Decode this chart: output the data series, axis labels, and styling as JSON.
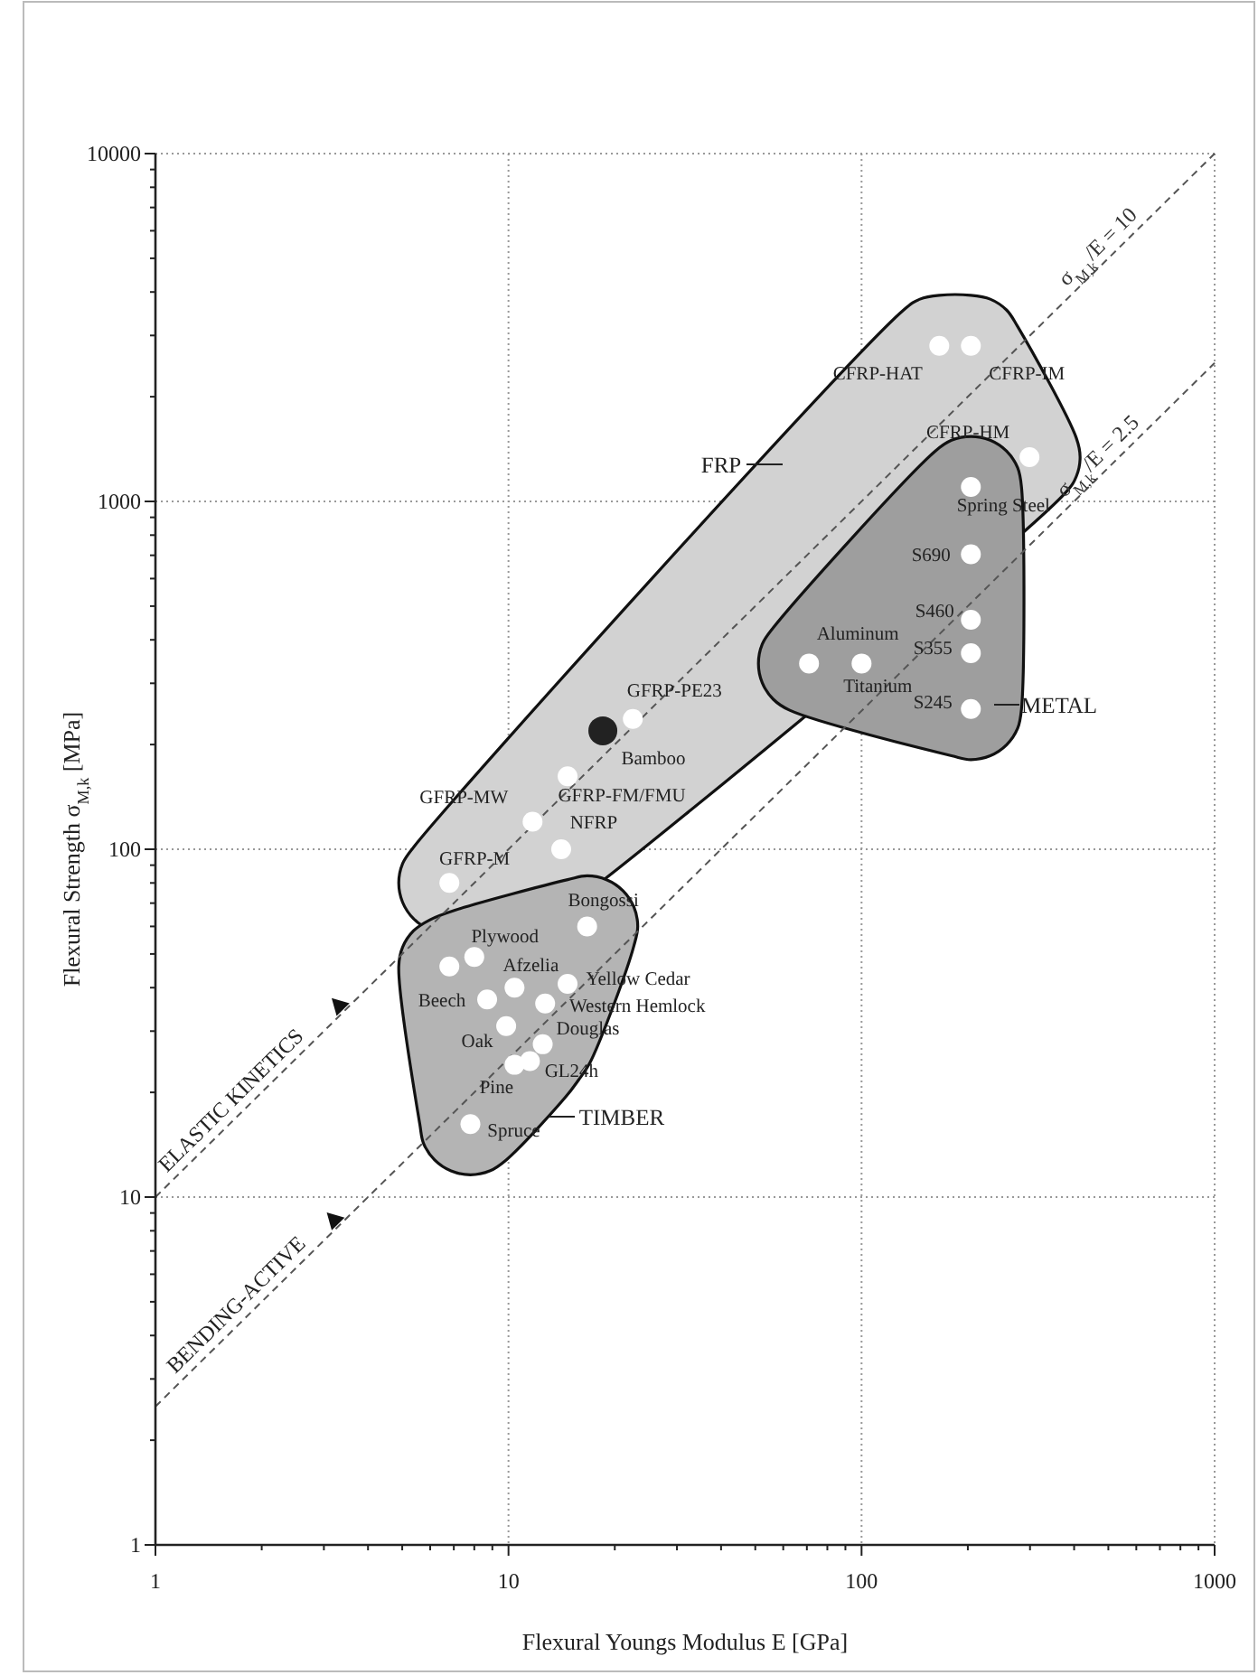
{
  "chart_data": {
    "type": "scatter",
    "xlabel": "Flexural Youngs Modulus E [GPa]",
    "ylabel": "Flexural Strength σ$_{M,k}$ [MPa]",
    "log": "xy",
    "grid": true,
    "marker": "circle",
    "xlim": [
      1,
      1000
    ],
    "xticks": [
      1,
      10,
      100,
      1000
    ],
    "ylim": [
      1,
      10000
    ],
    "yticks": [
      1,
      10,
      100,
      1000,
      10000
    ],
    "series": [
      {
        "color": "#ffffff",
        "x": [
          166,
          204,
          299,
          22.5,
          14.7,
          11.7,
          14.1,
          6.8
        ],
        "values": [
          2800,
          2800,
          1340,
          237,
          162,
          120,
          100,
          80
        ],
        "value_labels": [
          "CFRP-HAT",
          "CFRP-IM",
          "CFRP-HM",
          "GFRP-PE23",
          "GFRP-FM/FMU",
          "GFRP-MW",
          "NFRP",
          "GFRP-M"
        ]
      },
      {
        "color": "#ffffff",
        "x": [
          204,
          204,
          204,
          204,
          204,
          71,
          100
        ],
        "values": [
          1100,
          705,
          457,
          366,
          253,
          342,
          342
        ],
        "value_labels": [
          "Spring Steel",
          "S690",
          "S460",
          "S355",
          "S245",
          "Aluminum",
          "Titanium"
        ]
      },
      {
        "color": "#ffffff",
        "x": [
          16.7,
          6.8,
          8.0,
          8.7,
          10.4,
          14.7,
          12.7,
          9.85,
          12.5,
          10.4,
          11.5,
          7.8
        ],
        "values": [
          60,
          46,
          49,
          37,
          40,
          41,
          36,
          31,
          27.5,
          24,
          24.6,
          16.2
        ],
        "value_labels": [
          "Bongossi",
          null,
          "Plywood",
          "Beech",
          "Afzelia",
          "Yellow Cedar",
          "Western Hemlock",
          "Oak",
          "Douglas",
          "Pine",
          "GL24h",
          "Spruce"
        ]
      },
      {
        "color": "#222222",
        "x": [
          18.5
        ],
        "values": [
          219
        ],
        "value_labels": [
          "Bamboo"
        ]
      },
      {
        "type": "line",
        "name": "σ$_{M,k}$/E = 10",
        "color": "#555555",
        "line_style": "dashed",
        "marker": "none",
        "x": [
          1,
          1000
        ],
        "values": [
          10,
          10000
        ]
      },
      {
        "type": "line",
        "name": "σ$_{M,k}$/E = 2.5",
        "color": "#555555",
        "line_style": "dashed",
        "marker": "none",
        "x": [
          1,
          1000
        ],
        "values": [
          2.5,
          2500
        ]
      }
    ],
    "annotations": [
      {
        "text": "ELASTIC KINETICS",
        "x": 1.76,
        "y": 17.6
      },
      {
        "text": "BENDING-ACTIVE",
        "x": 1.82,
        "y": 4.55
      },
      "FRP",
      "METAL",
      "TIMBER"
    ]
  }
}
